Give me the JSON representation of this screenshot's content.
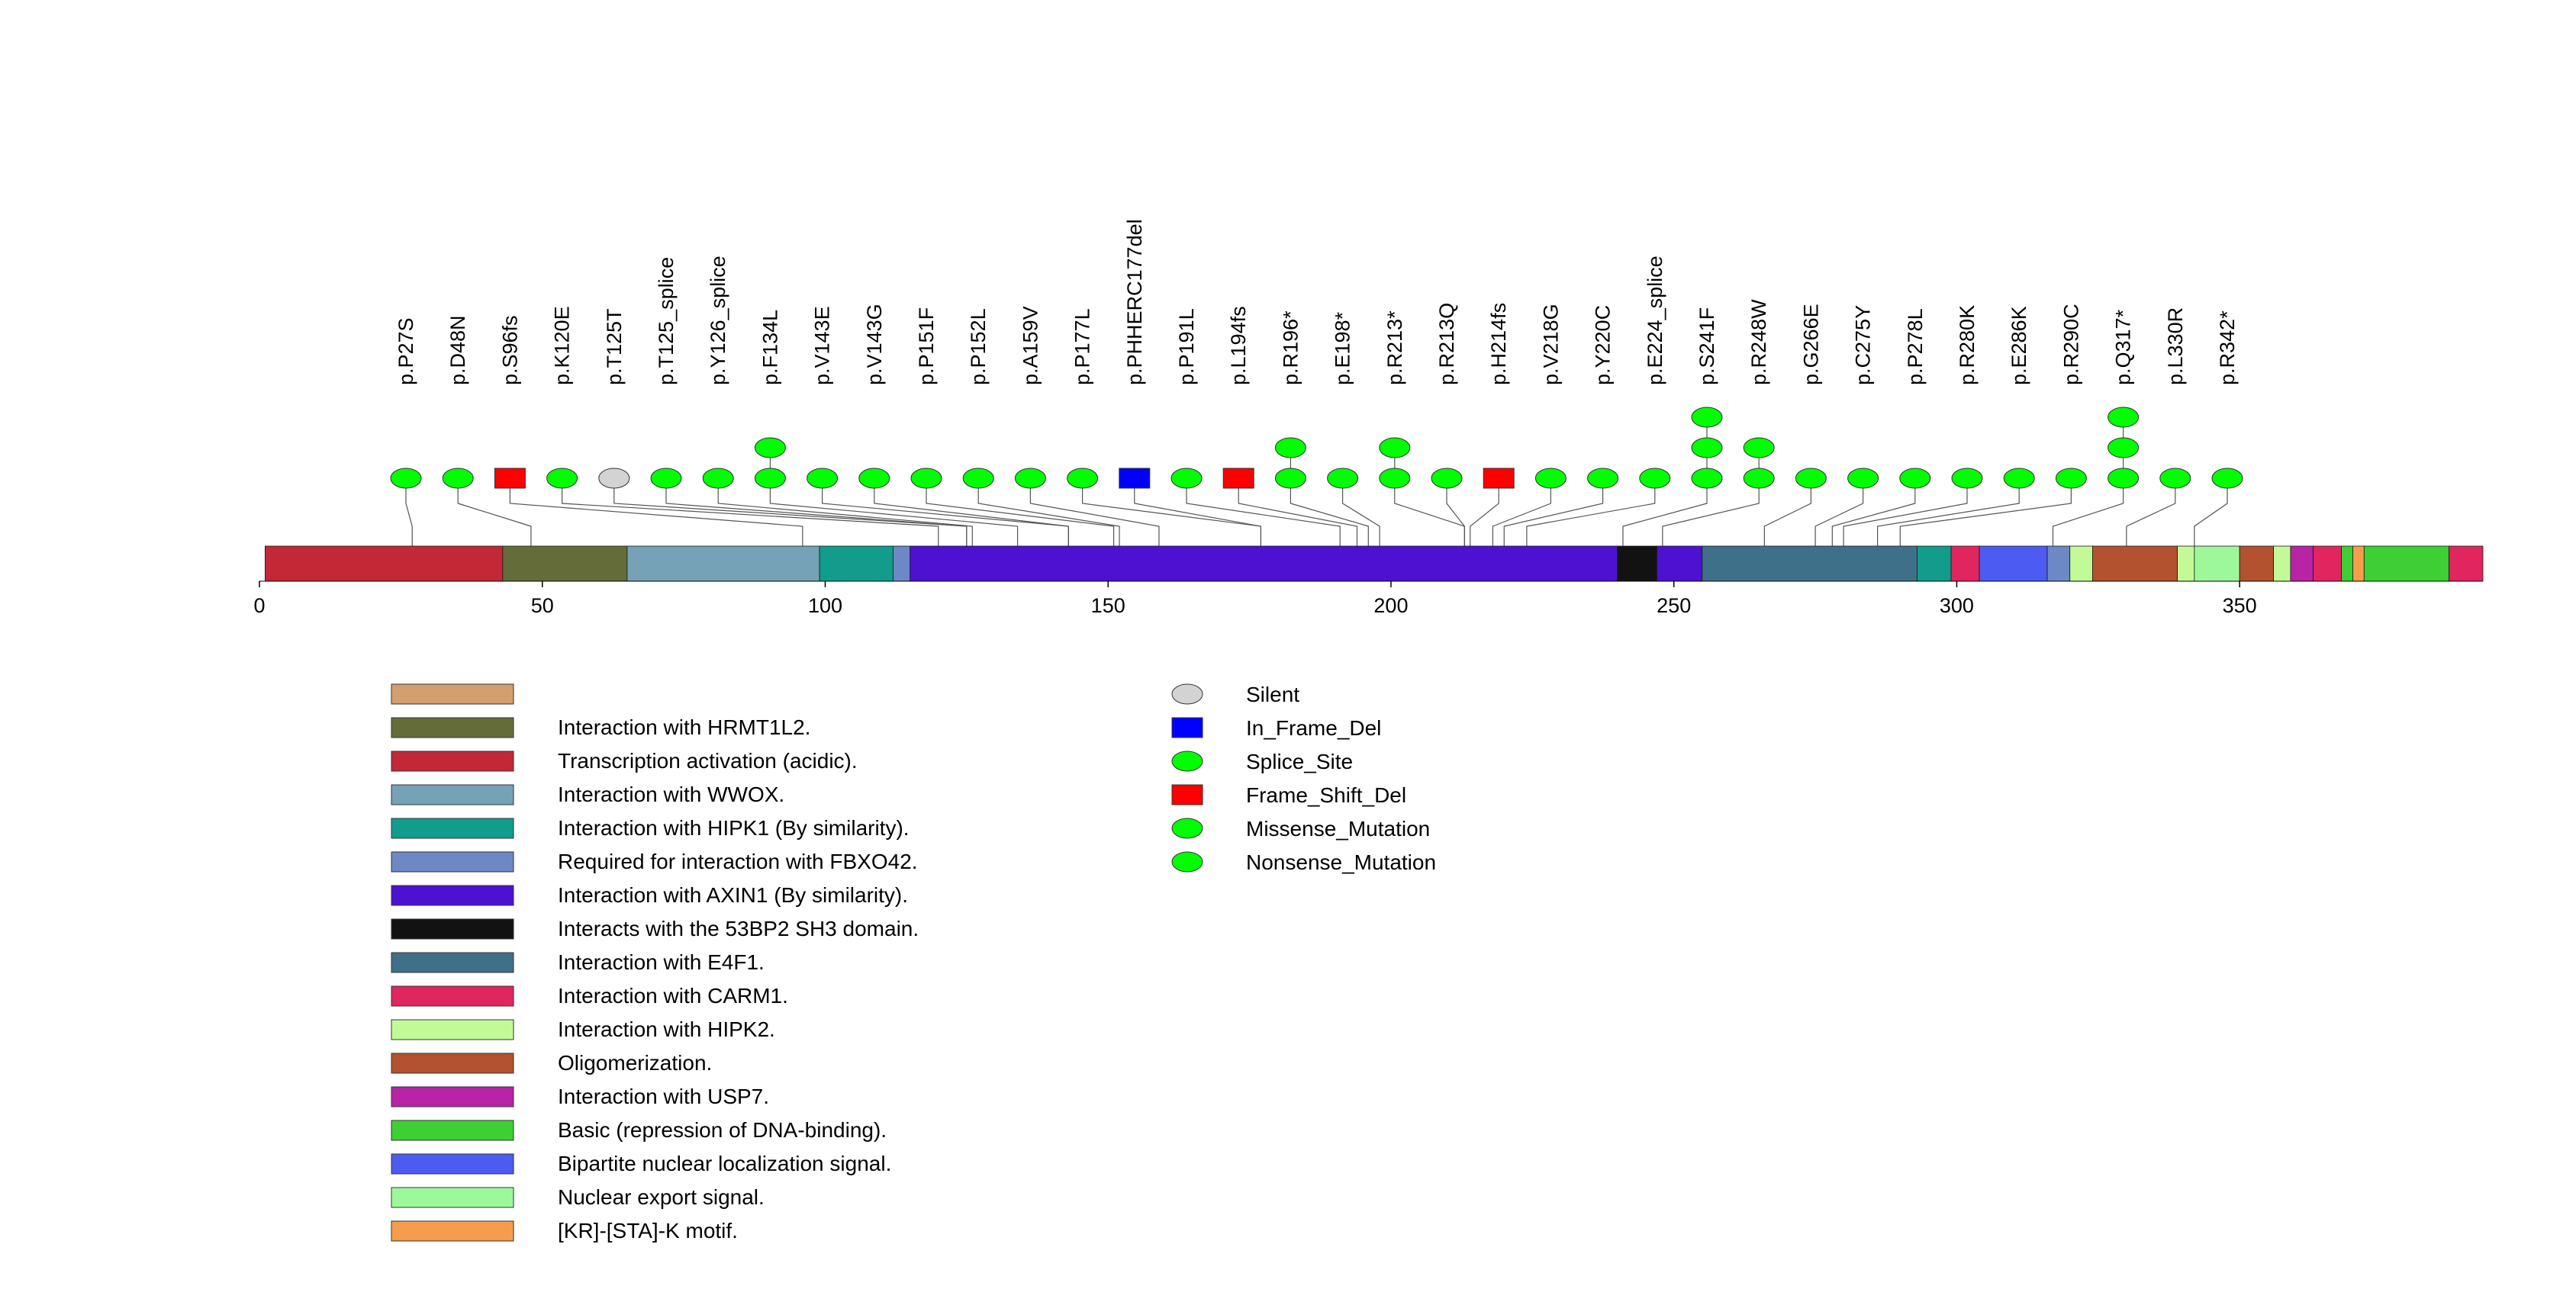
{
  "chart_data": {
    "type": "lollipop",
    "title": "",
    "xlabel": "",
    "ylabel": "",
    "protein_length": 393,
    "axis": {
      "range": [
        0,
        393
      ],
      "ticks": [
        0,
        50,
        100,
        150,
        200,
        250,
        300,
        350
      ]
    },
    "domain_legend": [
      {
        "name": "",
        "color": "#d39f6f"
      },
      {
        "name": "Interaction with HRMT1L2.",
        "color": "#646d3a"
      },
      {
        "name": "Transcription activation (acidic).",
        "color": "#c32836"
      },
      {
        "name": "Interaction with WWOX.",
        "color": "#76a2b8"
      },
      {
        "name": "Interaction with HIPK1 (By similarity).",
        "color": "#129c8c"
      },
      {
        "name": "Required for interaction with FBXO42.",
        "color": "#6d89c5"
      },
      {
        "name": "Interaction with AXIN1 (By similarity).",
        "color": "#4d11d2"
      },
      {
        "name": "Interacts with the 53BP2 SH3 domain.",
        "color": "#121212"
      },
      {
        "name": "Interaction with E4F1.",
        "color": "#3f7089"
      },
      {
        "name": "Interaction with CARM1.",
        "color": "#e1255f"
      },
      {
        "name": "Interaction with HIPK2.",
        "color": "#c3fa98"
      },
      {
        "name": "Oligomerization.",
        "color": "#b3522f"
      },
      {
        "name": "Interaction with USP7.",
        "color": "#b824a5"
      },
      {
        "name": "Basic (repression of DNA-binding).",
        "color": "#3dcf33"
      },
      {
        "name": "Bipartite nuclear localization signal.",
        "color": "#4c5cf3"
      },
      {
        "name": "Nuclear export signal.",
        "color": "#9df89a"
      },
      {
        "name": "[KR]-[STA]-K motif.",
        "color": "#f59d4d"
      }
    ],
    "domains": [
      {
        "start": 1,
        "end": 43,
        "color": "#c32836"
      },
      {
        "start": 43,
        "end": 65,
        "color": "#646d3a"
      },
      {
        "start": 65,
        "end": 99,
        "color": "#76a2b8"
      },
      {
        "start": 99,
        "end": 112,
        "color": "#129c8c"
      },
      {
        "start": 112,
        "end": 115,
        "color": "#6d89c5"
      },
      {
        "start": 115,
        "end": 240,
        "color": "#4d11d2"
      },
      {
        "start": 240,
        "end": 247,
        "color": "#121212"
      },
      {
        "start": 247,
        "end": 255,
        "color": "#4d11d2"
      },
      {
        "start": 255,
        "end": 293,
        "color": "#3f7089"
      },
      {
        "start": 293,
        "end": 299,
        "color": "#129c8c"
      },
      {
        "start": 299,
        "end": 304,
        "color": "#e1255f"
      },
      {
        "start": 304,
        "end": 316,
        "color": "#4c5cf3"
      },
      {
        "start": 316,
        "end": 320,
        "color": "#6d89c5"
      },
      {
        "start": 320,
        "end": 324,
        "color": "#c3fa98"
      },
      {
        "start": 324,
        "end": 339,
        "color": "#b3522f"
      },
      {
        "start": 339,
        "end": 342,
        "color": "#c3fa98"
      },
      {
        "start": 342,
        "end": 350,
        "color": "#9df89a"
      },
      {
        "start": 350,
        "end": 356,
        "color": "#b3522f"
      },
      {
        "start": 356,
        "end": 359,
        "color": "#c3fa98"
      },
      {
        "start": 359,
        "end": 363,
        "color": "#b824a5"
      },
      {
        "start": 363,
        "end": 368,
        "color": "#e1255f"
      },
      {
        "start": 368,
        "end": 370,
        "color": "#3dcf33"
      },
      {
        "start": 370,
        "end": 372,
        "color": "#f59d4d"
      },
      {
        "start": 372,
        "end": 387,
        "color": "#3dcf33"
      },
      {
        "start": 387,
        "end": 393,
        "color": "#e1255f"
      }
    ],
    "mutations": [
      {
        "label": "p.P27S",
        "position": 27,
        "stack": [
          {
            "type": "Missense_Mutation"
          }
        ]
      },
      {
        "label": "p.D48N",
        "position": 48,
        "stack": [
          {
            "type": "Missense_Mutation"
          }
        ]
      },
      {
        "label": "p.S96fs",
        "position": 96,
        "stack": [
          {
            "type": "Frame_Shift_Del"
          }
        ]
      },
      {
        "label": "p.K120E",
        "position": 120,
        "stack": [
          {
            "type": "Missense_Mutation"
          }
        ]
      },
      {
        "label": "p.T125T",
        "position": 125,
        "stack": [
          {
            "type": "Silent"
          }
        ]
      },
      {
        "label": "p.T125_splice",
        "position": 125,
        "stack": [
          {
            "type": "Splice_Site"
          }
        ]
      },
      {
        "label": "p.Y126_splice",
        "position": 126,
        "stack": [
          {
            "type": "Splice_Site"
          }
        ]
      },
      {
        "label": "p.F134L",
        "position": 134,
        "stack": [
          {
            "type": "Missense_Mutation"
          },
          {
            "type": "Missense_Mutation"
          }
        ]
      },
      {
        "label": "p.V143E",
        "position": 143,
        "stack": [
          {
            "type": "Missense_Mutation"
          }
        ]
      },
      {
        "label": "p.V143G",
        "position": 143,
        "stack": [
          {
            "type": "Missense_Mutation"
          }
        ]
      },
      {
        "label": "p.P151F",
        "position": 151,
        "stack": [
          {
            "type": "Missense_Mutation"
          }
        ]
      },
      {
        "label": "p.P152L",
        "position": 152,
        "stack": [
          {
            "type": "Missense_Mutation"
          }
        ]
      },
      {
        "label": "p.A159V",
        "position": 159,
        "stack": [
          {
            "type": "Missense_Mutation"
          }
        ]
      },
      {
        "label": "p.P177L",
        "position": 177,
        "stack": [
          {
            "type": "Missense_Mutation"
          }
        ]
      },
      {
        "label": "p.PHHERC177del",
        "position": 177,
        "stack": [
          {
            "type": "In_Frame_Del"
          }
        ]
      },
      {
        "label": "p.P191L",
        "position": 191,
        "stack": [
          {
            "type": "Missense_Mutation"
          }
        ]
      },
      {
        "label": "p.L194fs",
        "position": 194,
        "stack": [
          {
            "type": "Frame_Shift_Del"
          }
        ]
      },
      {
        "label": "p.R196*",
        "position": 196,
        "stack": [
          {
            "type": "Nonsense_Mutation"
          },
          {
            "type": "Nonsense_Mutation"
          }
        ]
      },
      {
        "label": "p.E198*",
        "position": 198,
        "stack": [
          {
            "type": "Nonsense_Mutation"
          }
        ]
      },
      {
        "label": "p.R213*",
        "position": 213,
        "stack": [
          {
            "type": "Nonsense_Mutation"
          },
          {
            "type": "Nonsense_Mutation"
          }
        ]
      },
      {
        "label": "p.R213Q",
        "position": 213,
        "stack": [
          {
            "type": "Missense_Mutation"
          }
        ]
      },
      {
        "label": "p.H214fs",
        "position": 214,
        "stack": [
          {
            "type": "Frame_Shift_Del"
          }
        ]
      },
      {
        "label": "p.V218G",
        "position": 218,
        "stack": [
          {
            "type": "Missense_Mutation"
          }
        ]
      },
      {
        "label": "p.Y220C",
        "position": 220,
        "stack": [
          {
            "type": "Missense_Mutation"
          }
        ]
      },
      {
        "label": "p.E224_splice",
        "position": 224,
        "stack": [
          {
            "type": "Splice_Site"
          }
        ]
      },
      {
        "label": "p.S241F",
        "position": 241,
        "stack": [
          {
            "type": "Missense_Mutation"
          },
          {
            "type": "Missense_Mutation"
          },
          {
            "type": "Missense_Mutation"
          }
        ]
      },
      {
        "label": "p.R248W",
        "position": 248,
        "stack": [
          {
            "type": "Missense_Mutation"
          },
          {
            "type": "Missense_Mutation"
          }
        ]
      },
      {
        "label": "p.G266E",
        "position": 266,
        "stack": [
          {
            "type": "Missense_Mutation"
          }
        ]
      },
      {
        "label": "p.C275Y",
        "position": 275,
        "stack": [
          {
            "type": "Missense_Mutation"
          }
        ]
      },
      {
        "label": "p.P278L",
        "position": 278,
        "stack": [
          {
            "type": "Missense_Mutation"
          }
        ]
      },
      {
        "label": "p.R280K",
        "position": 280,
        "stack": [
          {
            "type": "Missense_Mutation"
          }
        ]
      },
      {
        "label": "p.E286K",
        "position": 286,
        "stack": [
          {
            "type": "Missense_Mutation"
          }
        ]
      },
      {
        "label": "p.R290C",
        "position": 290,
        "stack": [
          {
            "type": "Missense_Mutation"
          }
        ]
      },
      {
        "label": "p.Q317*",
        "position": 317,
        "stack": [
          {
            "type": "Nonsense_Mutation"
          },
          {
            "type": "Nonsense_Mutation"
          },
          {
            "type": "Nonsense_Mutation"
          }
        ]
      },
      {
        "label": "p.L330R",
        "position": 330,
        "stack": [
          {
            "type": "Missense_Mutation"
          }
        ]
      },
      {
        "label": "p.R342*",
        "position": 342,
        "stack": [
          {
            "type": "Nonsense_Mutation"
          }
        ]
      }
    ],
    "mutation_legend": [
      {
        "type": "Silent",
        "shape": "ellipse",
        "color": "#d3d3d3"
      },
      {
        "type": "In_Frame_Del",
        "shape": "square",
        "color": "#0000ff"
      },
      {
        "type": "Splice_Site",
        "shape": "ellipse",
        "color": "#00ff00"
      },
      {
        "type": "Frame_Shift_Del",
        "shape": "square",
        "color": "#ff0000"
      },
      {
        "type": "Missense_Mutation",
        "shape": "ellipse",
        "color": "#00ff00"
      },
      {
        "type": "Nonsense_Mutation",
        "shape": "ellipse",
        "color": "#00ff00"
      }
    ]
  }
}
